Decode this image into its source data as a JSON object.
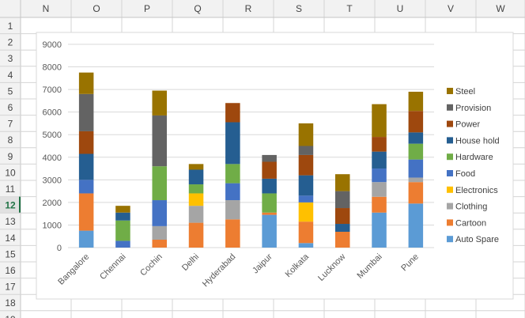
{
  "spreadsheet": {
    "columns": [
      "N",
      "O",
      "P",
      "Q",
      "R",
      "S",
      "T",
      "U",
      "V",
      "W"
    ],
    "rows": [
      "1",
      "2",
      "3",
      "4",
      "5",
      "6",
      "7",
      "8",
      "9",
      "10",
      "11",
      "12",
      "13",
      "14",
      "15",
      "16",
      "17",
      "18",
      "19"
    ],
    "active_row": "12"
  },
  "chart_data": {
    "type": "bar",
    "stacked": true,
    "title": "",
    "xlabel": "",
    "ylabel": "",
    "ylim": [
      0,
      9000
    ],
    "yticks": [
      0,
      1000,
      2000,
      3000,
      4000,
      5000,
      6000,
      7000,
      8000,
      9000
    ],
    "grid": true,
    "legend_position": "right",
    "categories": [
      "Bangalore",
      "Chennai",
      "Cochin",
      "Delhi",
      "Hyderabad",
      "Jaipur",
      "Kolkata",
      "Lucknow",
      "Mumbai",
      "Pune"
    ],
    "series": [
      {
        "name": "Auto Spare",
        "color": "#5B9BD5",
        "values": [
          750,
          0,
          0,
          0,
          0,
          1450,
          200,
          0,
          1550,
          1950
        ]
      },
      {
        "name": "Cartoon",
        "color": "#ED7D31",
        "values": [
          1650,
          0,
          350,
          1100,
          1250,
          100,
          950,
          700,
          700,
          950
        ]
      },
      {
        "name": "Clothing",
        "color": "#A5A5A5",
        "values": [
          0,
          0,
          600,
          750,
          850,
          0,
          0,
          0,
          650,
          200
        ]
      },
      {
        "name": "Electronics",
        "color": "#FFC000",
        "values": [
          0,
          0,
          0,
          550,
          0,
          0,
          850,
          0,
          0,
          0
        ]
      },
      {
        "name": "Food",
        "color": "#4472C4",
        "values": [
          600,
          300,
          1150,
          0,
          750,
          0,
          300,
          0,
          600,
          800
        ]
      },
      {
        "name": "Hardware",
        "color": "#70AD47",
        "values": [
          0,
          900,
          1500,
          400,
          850,
          850,
          0,
          0,
          0,
          700
        ]
      },
      {
        "name": "House hold",
        "color": "#255E91",
        "values": [
          1150,
          350,
          0,
          650,
          1850,
          650,
          900,
          350,
          750,
          500
        ]
      },
      {
        "name": "Power",
        "color": "#9E480E",
        "values": [
          1000,
          0,
          0,
          0,
          850,
          750,
          900,
          700,
          650,
          950
        ]
      },
      {
        "name": "Provision",
        "color": "#636363",
        "values": [
          1650,
          0,
          2250,
          0,
          0,
          300,
          400,
          750,
          0,
          0
        ]
      },
      {
        "name": "Steel",
        "color": "#997300",
        "values": [
          950,
          300,
          1100,
          250,
          0,
          0,
          1000,
          750,
          1450,
          850
        ]
      }
    ]
  }
}
